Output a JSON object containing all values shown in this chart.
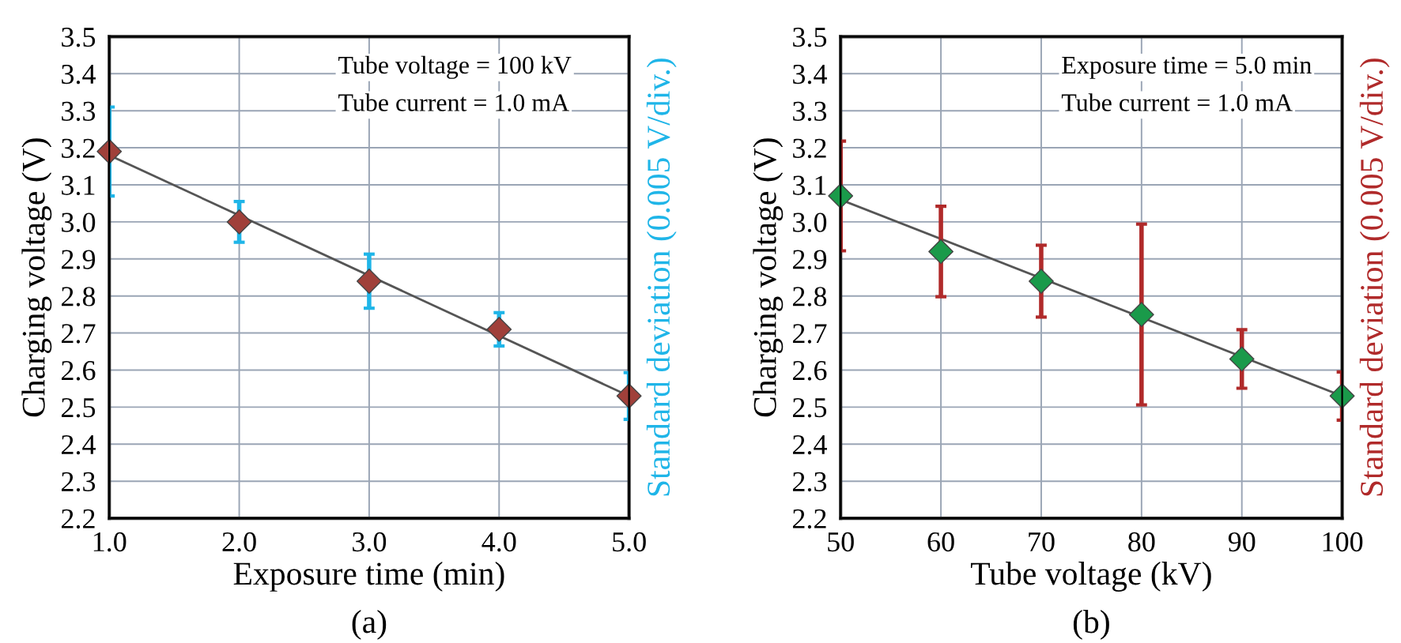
{
  "chart_data": [
    {
      "type": "scatter",
      "title": "(a)",
      "xlabel": "Exposure time (min)",
      "ylabel": "Charging voltage (V)",
      "y2label": "Standard deviation (0.005 V/div.)",
      "annotations": [
        "Tube voltage = 100 kV",
        "Tube current = 1.0 mA"
      ],
      "x": [
        1,
        2,
        3,
        4,
        5
      ],
      "series": [
        {
          "color": "#a0403a",
          "marker": "diamond",
          "values": [
            3.19,
            3.0,
            2.84,
            2.71,
            2.53
          ],
          "errors": [
            0.12,
            0.055,
            0.073,
            0.045,
            0.063
          ]
        },
        {
          "type": "line",
          "color": "#555555",
          "marker": "none",
          "line_style": "solid",
          "x": [
            1,
            5
          ],
          "values": [
            3.18,
            2.53
          ]
        }
      ],
      "xlim": [
        1,
        5
      ],
      "ylim": [
        2.2,
        3.5
      ],
      "xticks": [
        {
          "value": 1,
          "label": "1.0"
        },
        {
          "value": 2,
          "label": "2.0"
        },
        {
          "value": 3,
          "label": "3.0"
        },
        {
          "value": 4,
          "label": "4.0"
        },
        {
          "value": 5,
          "label": "5.0"
        }
      ],
      "yticks": [
        2.2,
        2.3,
        2.4,
        2.5,
        2.6,
        2.7,
        2.8,
        2.9,
        {
          "value": 3,
          "label": "3.0"
        },
        3.1,
        3.2,
        3.3,
        3.4,
        3.5
      ],
      "grid": true,
      "legend": false
    },
    {
      "type": "scatter",
      "title": "(b)",
      "xlabel": "Tube voltage (kV)",
      "ylabel": "Charging voltage (V)",
      "y2label": "Standard deviation (0.005 V/div.)",
      "annotations": [
        "Exposure time = 5.0 min",
        "Tube current = 1.0 mA"
      ],
      "x": [
        50,
        60,
        70,
        80,
        90,
        100
      ],
      "series": [
        {
          "color": "#1a9a4a",
          "marker": "diamond",
          "values": [
            3.07,
            2.92,
            2.84,
            2.75,
            2.63,
            2.53
          ],
          "errors": [
            0.148,
            0.122,
            0.097,
            0.244,
            0.079,
            0.065
          ]
        },
        {
          "type": "line",
          "color": "#555555",
          "marker": "none",
          "line_style": "solid",
          "x": [
            50,
            100
          ],
          "values": [
            3.06,
            2.53
          ]
        }
      ],
      "xlim": [
        50,
        100
      ],
      "ylim": [
        2.2,
        3.5
      ],
      "xticks": [
        50,
        60,
        70,
        80,
        90,
        100
      ],
      "yticks": [
        2.2,
        2.3,
        2.4,
        2.5,
        2.6,
        2.7,
        2.8,
        2.9,
        {
          "value": 3,
          "label": "3.0"
        },
        3.1,
        3.2,
        3.3,
        3.4,
        3.5
      ],
      "grid": true,
      "legend": false
    }
  ]
}
